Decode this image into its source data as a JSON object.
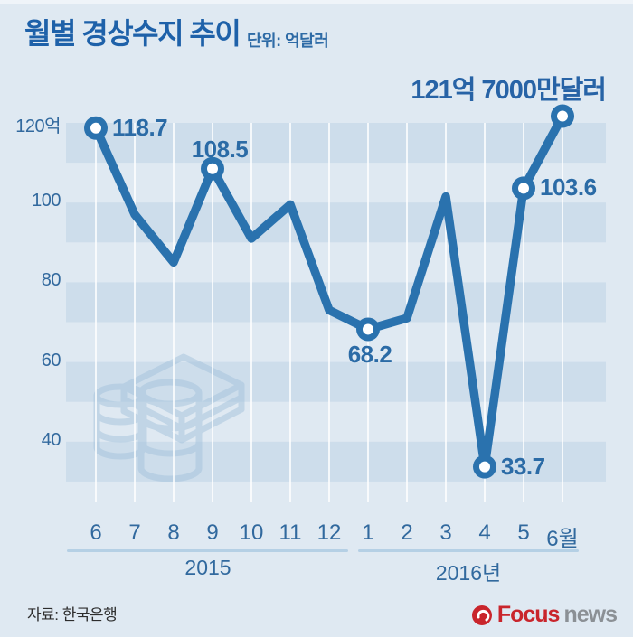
{
  "header": {
    "title": "월별 경상수지 추이",
    "unit": "단위: 억달러"
  },
  "chart_data": {
    "type": "line",
    "title": "월별 경상수지 추이",
    "unit_label": "단위: 억달러",
    "categories": [
      "6",
      "7",
      "8",
      "9",
      "10",
      "11",
      "12",
      "1",
      "2",
      "3",
      "4",
      "5",
      "6월"
    ],
    "values": [
      118.7,
      97,
      85,
      108.5,
      91,
      99.5,
      73,
      68.2,
      71,
      101.5,
      33.7,
      103.6,
      121.7
    ],
    "labeled_points": [
      {
        "index": 0,
        "label": "118.7",
        "placement": "right"
      },
      {
        "index": 3,
        "label": "108.5",
        "placement": "above"
      },
      {
        "index": 7,
        "label": "68.2",
        "placement": "below"
      },
      {
        "index": 10,
        "label": "33.7",
        "placement": "right"
      },
      {
        "index": 11,
        "label": "103.6",
        "placement": "right"
      },
      {
        "index": 12,
        "label": "121억 7000만달러",
        "placement": "headline"
      }
    ],
    "y_ticks": [
      {
        "label": "120억",
        "value": 120
      },
      {
        "label": "100",
        "value": 100
      },
      {
        "label": "80",
        "value": 80
      },
      {
        "label": "60",
        "value": 60
      },
      {
        "label": "40",
        "value": 40
      }
    ],
    "ylim": [
      27,
      126
    ],
    "year_groups": [
      {
        "label": "2015"
      },
      {
        "label": "2016년"
      }
    ],
    "legend": "none",
    "grid": "vertical white lines + alternating horizontal bands",
    "line_color": "#2a72ae",
    "band_color": "#cdddeb",
    "background_color": "#dfe9f2",
    "label_color": "#2b6ba6"
  },
  "footer": {
    "source": "자료: 한국은행",
    "logo": {
      "focus": "Focus",
      "news": "news"
    }
  }
}
